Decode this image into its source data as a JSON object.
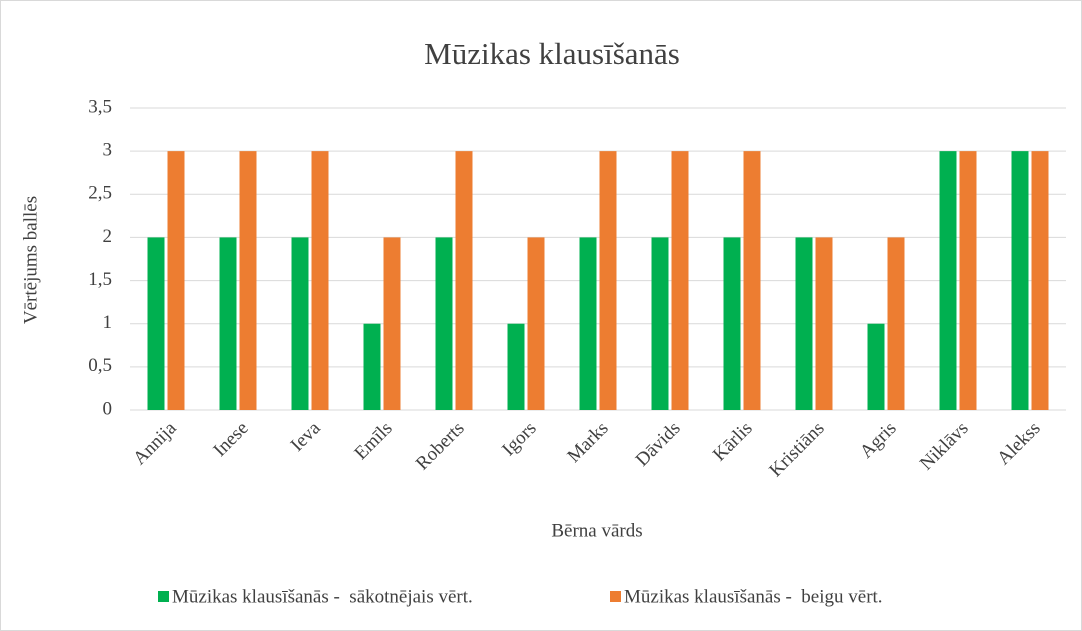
{
  "chart_data": {
    "type": "bar",
    "title": "Mūzikas klausīšanās",
    "y_label": "Vērtējums ballēs",
    "x_label": "Bērna vārds",
    "categories": [
      "Annija",
      "Inese",
      "Ieva",
      "Emīls",
      "Roberts",
      "Igors",
      "Marks",
      "Dāvids",
      "Kārlis",
      "Kristiāns",
      "Agris",
      "Niklāvs",
      "Alekss"
    ],
    "series": [
      {
        "name": "Mūzikas klausīšanās -  sākotnējais vērt.",
        "color": "#00b050",
        "values": [
          2,
          2,
          2,
          1,
          2,
          1,
          2,
          2,
          2,
          2,
          1,
          3,
          3
        ]
      },
      {
        "name": "Mūzikas klausīšanās -  beigu vērt.",
        "color": "#ed7d31",
        "values": [
          3,
          3,
          3,
          2,
          3,
          2,
          3,
          3,
          3,
          2,
          2,
          3,
          3
        ]
      }
    ],
    "ylim": [
      0,
      3.5
    ],
    "yticks": [
      0,
      {
        "value": 0.5,
        "label": "0,5"
      },
      1,
      {
        "value": 1.5,
        "label": "1,5"
      },
      2,
      {
        "value": 2.5,
        "label": "2,5"
      },
      3,
      {
        "value": 3.5,
        "label": "3,5"
      }
    ],
    "grid": true,
    "legend": "bottom"
  }
}
